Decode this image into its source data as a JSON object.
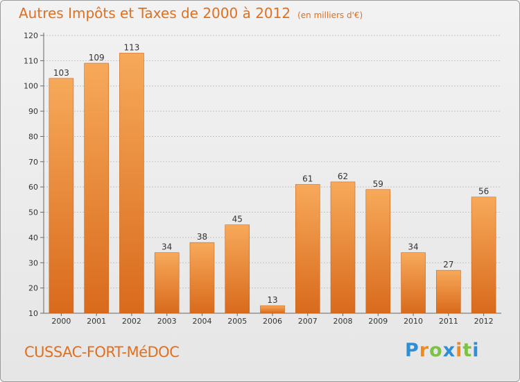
{
  "chart_data": {
    "type": "bar",
    "title": "Autres Impôts et Taxes de 2000 à 2012",
    "unit": "(en milliers d'€)",
    "categories": [
      "2000",
      "2001",
      "2002",
      "2003",
      "2004",
      "2005",
      "2006",
      "2007",
      "2008",
      "2009",
      "2010",
      "2011",
      "2012"
    ],
    "values": [
      103,
      109,
      113,
      34,
      38,
      45,
      13,
      61,
      62,
      59,
      34,
      27,
      56
    ],
    "ylim": [
      10,
      120
    ],
    "yticks": [
      10,
      20,
      30,
      40,
      50,
      60,
      70,
      80,
      90,
      100,
      110,
      120
    ],
    "grid": true,
    "colors": {
      "bar_top": "#f7a95a",
      "bar_bottom": "#d96a1c",
      "bar_edge": "#c8661c",
      "accent": "#e07020"
    }
  },
  "footer": {
    "city": "CUSSAC-FORT-MéDOC"
  },
  "brand": {
    "letters": [
      "P",
      "r",
      "o",
      "x",
      "i",
      "t",
      "i"
    ],
    "colors": [
      "#2e8fd6",
      "#f08a1c",
      "#7cc243",
      "#2e8fd6",
      "#f08a1c",
      "#7cc243",
      "#2e8fd6"
    ]
  }
}
